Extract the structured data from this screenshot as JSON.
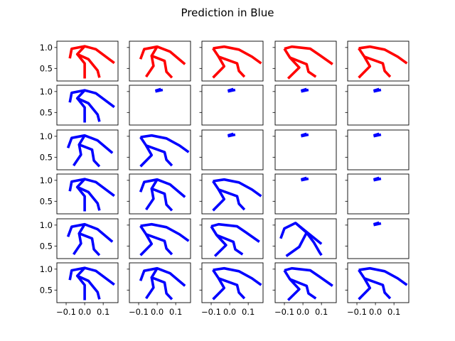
{
  "figure": {
    "title": "Prediction in Blue"
  },
  "chart_data": {
    "type": "line",
    "title": "Prediction in Blue",
    "grid": false,
    "rows": 6,
    "cols": 5,
    "xlim": [
      -0.15,
      0.18
    ],
    "ylim": [
      0.2,
      1.15
    ],
    "xticks": [
      -0.1,
      0.0,
      0.1
    ],
    "xtick_labels": [
      "−0.1",
      "0.0",
      "0.1"
    ],
    "yticks": [
      1.0,
      0.5
    ],
    "ytick_labels": [
      "1.0",
      "0.5"
    ],
    "colors": {
      "ground_truth": "#ff0000",
      "prediction": "#0000ff"
    },
    "skeletons": {
      "full_a": [
        [
          [
            -0.08,
            0.74
          ],
          [
            -0.07,
            0.97
          ],
          [
            0.0,
            1.03
          ],
          [
            0.06,
            0.96
          ],
          [
            0.16,
            0.63
          ]
        ],
        [
          [
            0.0,
            1.03
          ],
          [
            -0.04,
            0.84
          ],
          [
            0.02,
            0.72
          ],
          [
            0.07,
            0.45
          ],
          [
            0.08,
            0.28
          ]
        ],
        [
          [
            -0.04,
            0.84
          ],
          [
            0.0,
            0.62
          ],
          [
            0.0,
            0.26
          ]
        ]
      ],
      "full_b": [
        [
          [
            -0.09,
            0.72
          ],
          [
            -0.07,
            0.96
          ],
          [
            0.0,
            1.02
          ],
          [
            0.07,
            0.9
          ],
          [
            0.15,
            0.6
          ]
        ],
        [
          [
            0.0,
            1.02
          ],
          [
            -0.03,
            0.8
          ],
          [
            0.04,
            0.68
          ],
          [
            0.05,
            0.42
          ],
          [
            0.08,
            0.28
          ]
        ],
        [
          [
            -0.03,
            0.8
          ],
          [
            -0.02,
            0.56
          ],
          [
            -0.06,
            0.3
          ]
        ]
      ],
      "full_c": [
        [
          [
            -0.09,
            0.98
          ],
          [
            -0.03,
            1.02
          ],
          [
            0.05,
            0.95
          ],
          [
            0.12,
            0.78
          ],
          [
            0.17,
            0.62
          ]
        ],
        [
          [
            -0.09,
            0.98
          ],
          [
            -0.06,
            0.78
          ],
          [
            0.04,
            0.62
          ],
          [
            0.05,
            0.44
          ],
          [
            0.08,
            0.3
          ]
        ],
        [
          [
            -0.06,
            0.78
          ],
          [
            -0.03,
            0.55
          ],
          [
            -0.09,
            0.28
          ]
        ]
      ],
      "full_d": [
        [
          [
            -0.1,
            0.97
          ],
          [
            -0.06,
            1.02
          ],
          [
            0.04,
            0.97
          ],
          [
            0.09,
            0.82
          ],
          [
            0.16,
            0.6
          ]
        ],
        [
          [
            -0.1,
            0.97
          ],
          [
            -0.07,
            0.76
          ],
          [
            0.02,
            0.6
          ],
          [
            0.03,
            0.42
          ],
          [
            0.07,
            0.3
          ]
        ],
        [
          [
            -0.07,
            0.76
          ],
          [
            -0.02,
            0.52
          ],
          [
            -0.08,
            0.26
          ]
        ]
      ],
      "crouch": [
        [
          [
            -0.12,
            0.68
          ],
          [
            -0.1,
            0.92
          ],
          [
            -0.04,
            1.05
          ],
          [
            0.03,
            0.8
          ],
          [
            0.1,
            0.55
          ]
        ],
        [
          [
            -0.04,
            1.05
          ],
          [
            0.02,
            0.82
          ],
          [
            0.06,
            0.58
          ],
          [
            0.09,
            0.35
          ],
          [
            0.1,
            0.28
          ]
        ],
        [
          [
            0.02,
            0.82
          ],
          [
            -0.02,
            0.48
          ],
          [
            -0.09,
            0.26
          ]
        ]
      ],
      "tiny": [
        [
          [
            -0.01,
            1.0
          ],
          [
            0.03,
            1.04
          ]
        ],
        [
          [
            -0.01,
            1.02
          ],
          [
            0.02,
            1.06
          ]
        ]
      ]
    },
    "panels": [
      [
        "full_a",
        "full_b",
        "full_c",
        "full_d",
        "full_c"
      ],
      [
        "full_a",
        "tiny",
        "tiny",
        "tiny",
        "tiny"
      ],
      [
        "full_b",
        "full_c",
        "tiny",
        "tiny",
        "tiny"
      ],
      [
        "full_a",
        "full_b",
        "full_c",
        "tiny",
        "tiny"
      ],
      [
        "full_b",
        "full_c",
        "full_d",
        "crouch",
        "tiny"
      ],
      [
        "full_a",
        "full_b",
        "full_c",
        "full_d",
        "full_c"
      ]
    ],
    "series": [
      {
        "name": "",
        "row": 0,
        "color": "ground_truth"
      },
      {
        "name": "",
        "rows": [
          1,
          2,
          3,
          4,
          5
        ],
        "color": "prediction"
      }
    ]
  }
}
